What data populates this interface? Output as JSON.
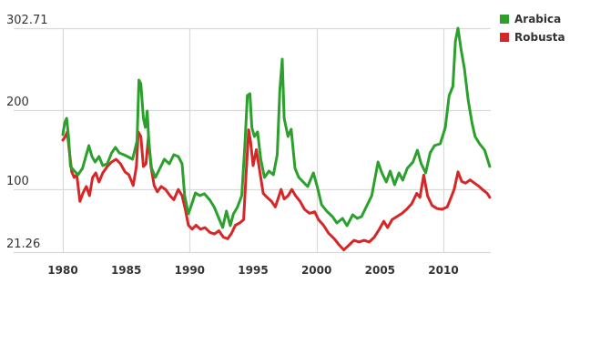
{
  "chart_data": {
    "type": "line",
    "title": "",
    "xlabel": "",
    "ylabel": "",
    "xlim": [
      1978.9,
      2013.7
    ],
    "ylim": [
      21.26,
      302.71
    ],
    "y_ticks": [
      {
        "value": 302.71,
        "label": "302.71"
      },
      {
        "value": 200,
        "label": "200"
      },
      {
        "value": 100,
        "label": "100"
      },
      {
        "value": 21.26,
        "label": "21.26"
      }
    ],
    "x_ticks": [
      {
        "value": 1980,
        "label": "1980"
      },
      {
        "value": 1985,
        "label": "1985"
      },
      {
        "value": 1990,
        "label": "1990"
      },
      {
        "value": 1995,
        "label": "1995"
      },
      {
        "value": 2000,
        "label": "2000"
      },
      {
        "value": 2005,
        "label": "2005"
      },
      {
        "value": 2010,
        "label": "2010"
      }
    ],
    "grid": {
      "horizontal": true,
      "vertical_at": [
        1980,
        1990,
        2000,
        2010
      ]
    },
    "legend_position": "top-right",
    "series": [
      {
        "name": "Arabica",
        "color": "#2ca02c",
        "points": [
          [
            1980.0,
            168.8
          ],
          [
            1980.15,
            183.7
          ],
          [
            1980.3,
            189.4
          ],
          [
            1980.45,
            166.6
          ],
          [
            1980.6,
            128.8
          ],
          [
            1980.85,
            124.2
          ],
          [
            1981.2,
            118.5
          ],
          [
            1981.55,
            126.5
          ],
          [
            1981.85,
            143.7
          ],
          [
            1982.05,
            155.1
          ],
          [
            1982.3,
            141.4
          ],
          [
            1982.55,
            134.5
          ],
          [
            1982.85,
            141.4
          ],
          [
            1983.15,
            130.0
          ],
          [
            1983.5,
            132.2
          ],
          [
            1983.85,
            146.0
          ],
          [
            1984.15,
            152.8
          ],
          [
            1984.45,
            146.0
          ],
          [
            1984.8,
            143.7
          ],
          [
            1985.1,
            141.4
          ],
          [
            1985.5,
            138.0
          ],
          [
            1985.85,
            160.8
          ],
          [
            1986.0,
            237.5
          ],
          [
            1986.15,
            232.9
          ],
          [
            1986.35,
            189.4
          ],
          [
            1986.5,
            178.0
          ],
          [
            1986.65,
            198.6
          ],
          [
            1986.8,
            155.1
          ],
          [
            1987.0,
            126.5
          ],
          [
            1987.3,
            115.1
          ],
          [
            1987.65,
            126.5
          ],
          [
            1988.0,
            138.0
          ],
          [
            1988.4,
            132.2
          ],
          [
            1988.75,
            143.7
          ],
          [
            1989.1,
            141.4
          ],
          [
            1989.4,
            132.2
          ],
          [
            1989.6,
            92.2
          ],
          [
            1989.9,
            69.3
          ],
          [
            1990.15,
            80.8
          ],
          [
            1990.45,
            95.6
          ],
          [
            1990.8,
            92.2
          ],
          [
            1991.15,
            94.6
          ],
          [
            1991.6,
            86.5
          ],
          [
            1991.95,
            77.3
          ],
          [
            1992.3,
            63.6
          ],
          [
            1992.6,
            52.2
          ],
          [
            1992.9,
            72.8
          ],
          [
            1993.2,
            54.4
          ],
          [
            1993.45,
            69.3
          ],
          [
            1993.75,
            77.3
          ],
          [
            1994.1,
            92.2
          ],
          [
            1994.35,
            155.1
          ],
          [
            1994.55,
            218.0
          ],
          [
            1994.75,
            220.3
          ],
          [
            1994.9,
            178.0
          ],
          [
            1995.1,
            166.6
          ],
          [
            1995.35,
            172.3
          ],
          [
            1995.6,
            138.0
          ],
          [
            1995.9,
            115.1
          ],
          [
            1996.25,
            123.1
          ],
          [
            1996.6,
            118.5
          ],
          [
            1996.9,
            143.7
          ],
          [
            1997.1,
            223.8
          ],
          [
            1997.3,
            263.8
          ],
          [
            1997.45,
            189.4
          ],
          [
            1997.75,
            166.6
          ],
          [
            1998.0,
            175.7
          ],
          [
            1998.3,
            126.5
          ],
          [
            1998.6,
            115.1
          ],
          [
            1998.95,
            109.4
          ],
          [
            1999.3,
            103.6
          ],
          [
            1999.75,
            120.8
          ],
          [
            2000.05,
            103.6
          ],
          [
            2000.4,
            80.8
          ],
          [
            2000.8,
            72.8
          ],
          [
            2001.25,
            65.9
          ],
          [
            2001.6,
            57.9
          ],
          [
            2002.05,
            63.6
          ],
          [
            2002.4,
            54.4
          ],
          [
            2002.85,
            68.2
          ],
          [
            2003.2,
            63.6
          ],
          [
            2003.55,
            65.9
          ],
          [
            2004.0,
            80.8
          ],
          [
            2004.35,
            92.2
          ],
          [
            2004.85,
            134.5
          ],
          [
            2005.15,
            120.8
          ],
          [
            2005.5,
            109.4
          ],
          [
            2005.8,
            123.1
          ],
          [
            2006.15,
            105.9
          ],
          [
            2006.5,
            120.8
          ],
          [
            2006.8,
            111.7
          ],
          [
            2007.15,
            126.5
          ],
          [
            2007.6,
            134.5
          ],
          [
            2007.95,
            149.4
          ],
          [
            2008.25,
            132.2
          ],
          [
            2008.6,
            120.8
          ],
          [
            2008.95,
            146.0
          ],
          [
            2009.3,
            155.1
          ],
          [
            2009.75,
            157.4
          ],
          [
            2010.15,
            178.0
          ],
          [
            2010.45,
            218.0
          ],
          [
            2010.75,
            229.5
          ],
          [
            2010.95,
            286.7
          ],
          [
            2011.15,
            302.7
          ],
          [
            2011.4,
            275.3
          ],
          [
            2011.65,
            252.4
          ],
          [
            2011.95,
            212.3
          ],
          [
            2012.25,
            183.7
          ],
          [
            2012.5,
            166.6
          ],
          [
            2012.85,
            157.4
          ],
          [
            2013.25,
            149.4
          ],
          [
            2013.65,
            128.8
          ]
        ]
      },
      {
        "name": "Robusta",
        "color": "#d62728",
        "points": [
          [
            1980.0,
            162.0
          ],
          [
            1980.2,
            166.6
          ],
          [
            1980.35,
            172.3
          ],
          [
            1980.5,
            150.0
          ],
          [
            1980.7,
            122.0
          ],
          [
            1980.9,
            115.1
          ],
          [
            1981.1,
            118.5
          ],
          [
            1981.35,
            85.0
          ],
          [
            1981.6,
            96.0
          ],
          [
            1981.85,
            103.6
          ],
          [
            1982.1,
            92.2
          ],
          [
            1982.35,
            115.1
          ],
          [
            1982.6,
            120.8
          ],
          [
            1982.85,
            109.4
          ],
          [
            1983.15,
            120.8
          ],
          [
            1983.5,
            128.8
          ],
          [
            1983.85,
            134.5
          ],
          [
            1984.2,
            138.0
          ],
          [
            1984.55,
            132.2
          ],
          [
            1984.9,
            122.0
          ],
          [
            1985.2,
            118.5
          ],
          [
            1985.55,
            105.0
          ],
          [
            1985.8,
            128.8
          ],
          [
            1985.95,
            172.3
          ],
          [
            1986.15,
            166.6
          ],
          [
            1986.35,
            128.8
          ],
          [
            1986.55,
            132.2
          ],
          [
            1986.75,
            166.6
          ],
          [
            1986.95,
            128.8
          ],
          [
            1987.2,
            105.0
          ],
          [
            1987.45,
            97.0
          ],
          [
            1987.75,
            103.6
          ],
          [
            1988.1,
            100.0
          ],
          [
            1988.45,
            92.2
          ],
          [
            1988.75,
            87.0
          ],
          [
            1989.1,
            100.0
          ],
          [
            1989.4,
            92.2
          ],
          [
            1989.65,
            75.0
          ],
          [
            1989.9,
            55.0
          ],
          [
            1990.2,
            50.0
          ],
          [
            1990.5,
            55.0
          ],
          [
            1990.85,
            50.0
          ],
          [
            1991.2,
            52.0
          ],
          [
            1991.6,
            46.0
          ],
          [
            1991.95,
            44.0
          ],
          [
            1992.3,
            48.0
          ],
          [
            1992.65,
            40.0
          ],
          [
            1993.0,
            38.0
          ],
          [
            1993.3,
            45.0
          ],
          [
            1993.6,
            55.0
          ],
          [
            1993.95,
            58.0
          ],
          [
            1994.25,
            62.0
          ],
          [
            1994.45,
            120.0
          ],
          [
            1994.65,
            175.0
          ],
          [
            1994.8,
            160.0
          ],
          [
            1995.0,
            130.0
          ],
          [
            1995.25,
            150.0
          ],
          [
            1995.5,
            125.0
          ],
          [
            1995.8,
            95.0
          ],
          [
            1996.1,
            90.0
          ],
          [
            1996.45,
            85.0
          ],
          [
            1996.75,
            78.0
          ],
          [
            1997.0,
            90.0
          ],
          [
            1997.2,
            100.0
          ],
          [
            1997.45,
            88.0
          ],
          [
            1997.75,
            92.0
          ],
          [
            1998.05,
            100.0
          ],
          [
            1998.35,
            92.0
          ],
          [
            1998.7,
            85.0
          ],
          [
            1999.05,
            75.0
          ],
          [
            1999.45,
            70.0
          ],
          [
            1999.85,
            72.0
          ],
          [
            2000.15,
            62.0
          ],
          [
            2000.55,
            55.0
          ],
          [
            2000.95,
            45.0
          ],
          [
            2001.4,
            38.0
          ],
          [
            2001.8,
            30.0
          ],
          [
            2002.15,
            24.0
          ],
          [
            2002.55,
            30.0
          ],
          [
            2002.95,
            36.0
          ],
          [
            2003.35,
            34.0
          ],
          [
            2003.75,
            36.0
          ],
          [
            2004.15,
            34.0
          ],
          [
            2004.55,
            40.0
          ],
          [
            2004.95,
            50.0
          ],
          [
            2005.3,
            60.0
          ],
          [
            2005.6,
            52.0
          ],
          [
            2005.95,
            62.0
          ],
          [
            2006.35,
            66.0
          ],
          [
            2006.75,
            70.0
          ],
          [
            2007.1,
            75.0
          ],
          [
            2007.5,
            82.0
          ],
          [
            2007.9,
            95.0
          ],
          [
            2008.15,
            90.0
          ],
          [
            2008.45,
            118.0
          ],
          [
            2008.75,
            92.0
          ],
          [
            2009.1,
            80.0
          ],
          [
            2009.5,
            76.0
          ],
          [
            2009.9,
            75.0
          ],
          [
            2010.3,
            78.0
          ],
          [
            2010.6,
            90.0
          ],
          [
            2010.85,
            100.0
          ],
          [
            2011.15,
            122.0
          ],
          [
            2011.45,
            110.0
          ],
          [
            2011.75,
            108.0
          ],
          [
            2012.1,
            112.0
          ],
          [
            2012.45,
            108.0
          ],
          [
            2012.8,
            104.0
          ],
          [
            2013.15,
            99.0
          ],
          [
            2013.45,
            95.0
          ],
          [
            2013.65,
            90.0
          ]
        ]
      }
    ]
  },
  "legend": {
    "items": [
      {
        "label": "Arabica",
        "color": "#2ca02c"
      },
      {
        "label": "Robusta",
        "color": "#d62728"
      }
    ]
  }
}
